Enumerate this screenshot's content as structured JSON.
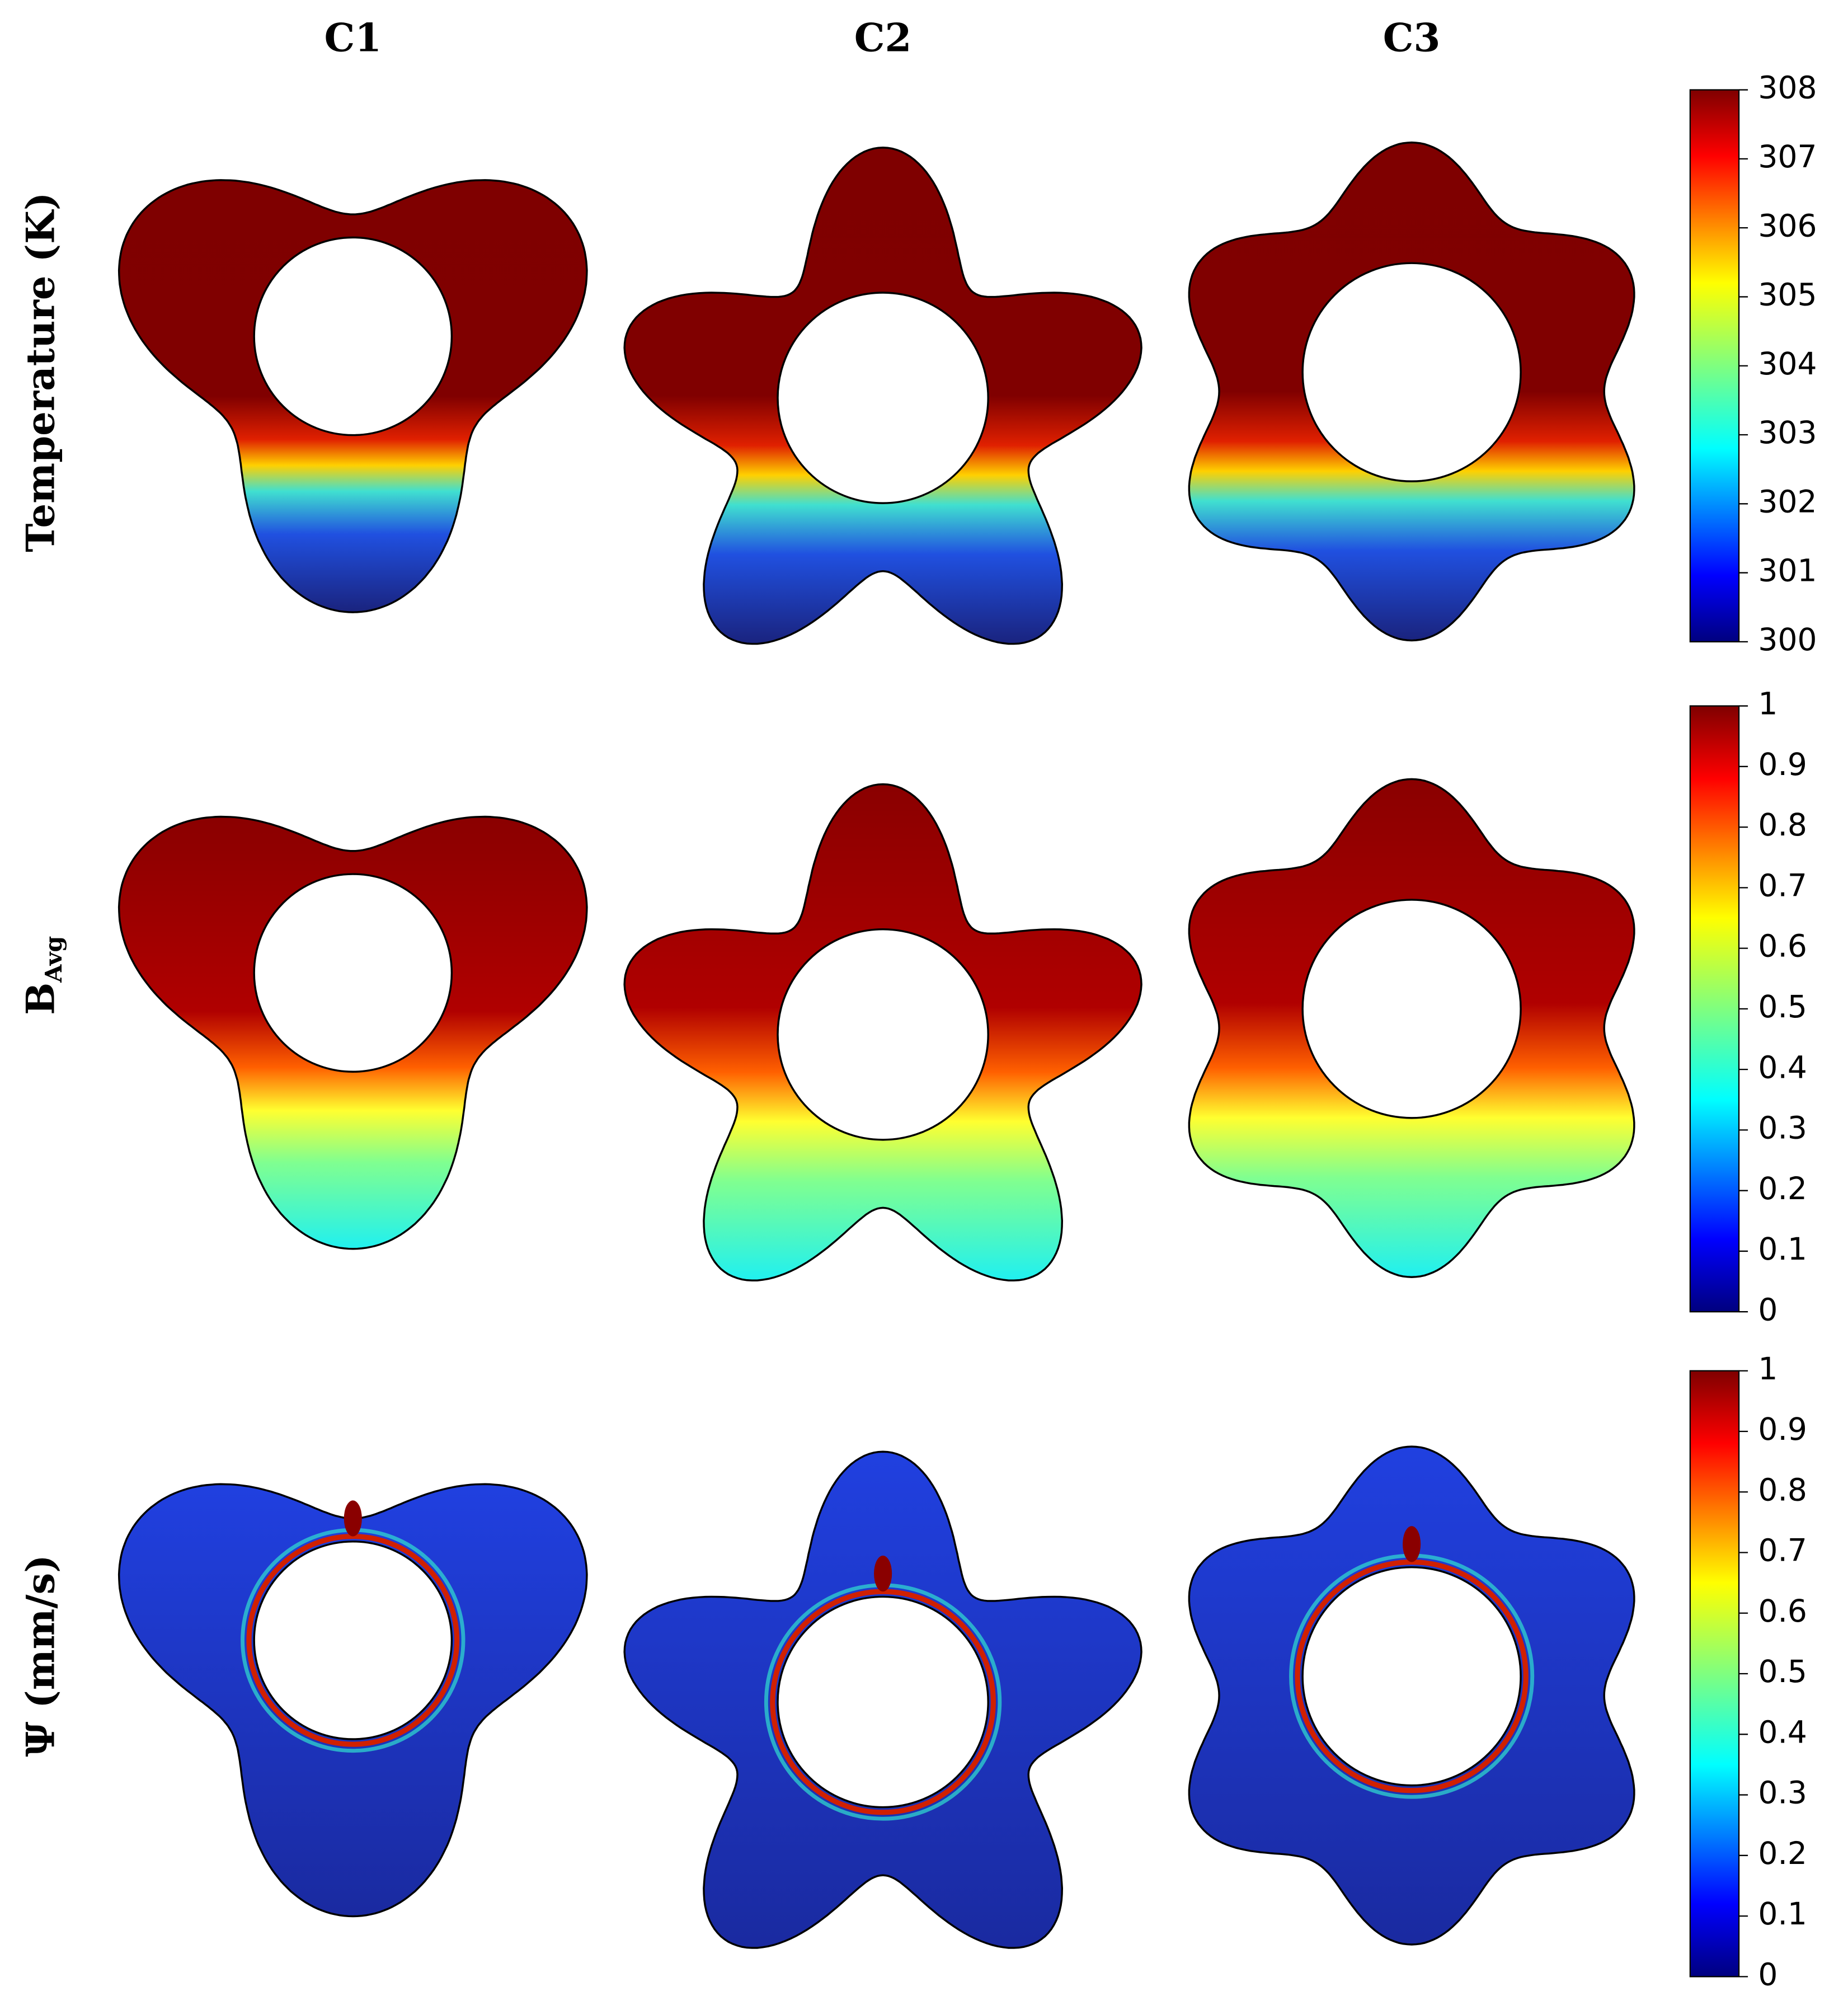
{
  "columns": [
    "C1",
    "C2",
    "C3"
  ],
  "rows": [
    {
      "label": "Temperature (K)"
    },
    {
      "label": "B",
      "subscript": "Avg"
    },
    {
      "label": "Ψ (mm/s)"
    }
  ],
  "colorbars": [
    {
      "ticks": [
        300,
        301,
        302,
        303,
        304,
        305,
        306,
        307,
        308
      ]
    },
    {
      "ticks": [
        0,
        0.1,
        0.2,
        0.3,
        0.4,
        0.5,
        0.6,
        0.7,
        0.8,
        0.9,
        1
      ]
    },
    {
      "ticks": [
        0,
        0.1,
        0.2,
        0.3,
        0.4,
        0.5,
        0.6,
        0.7,
        0.8,
        0.9,
        1
      ]
    }
  ]
}
